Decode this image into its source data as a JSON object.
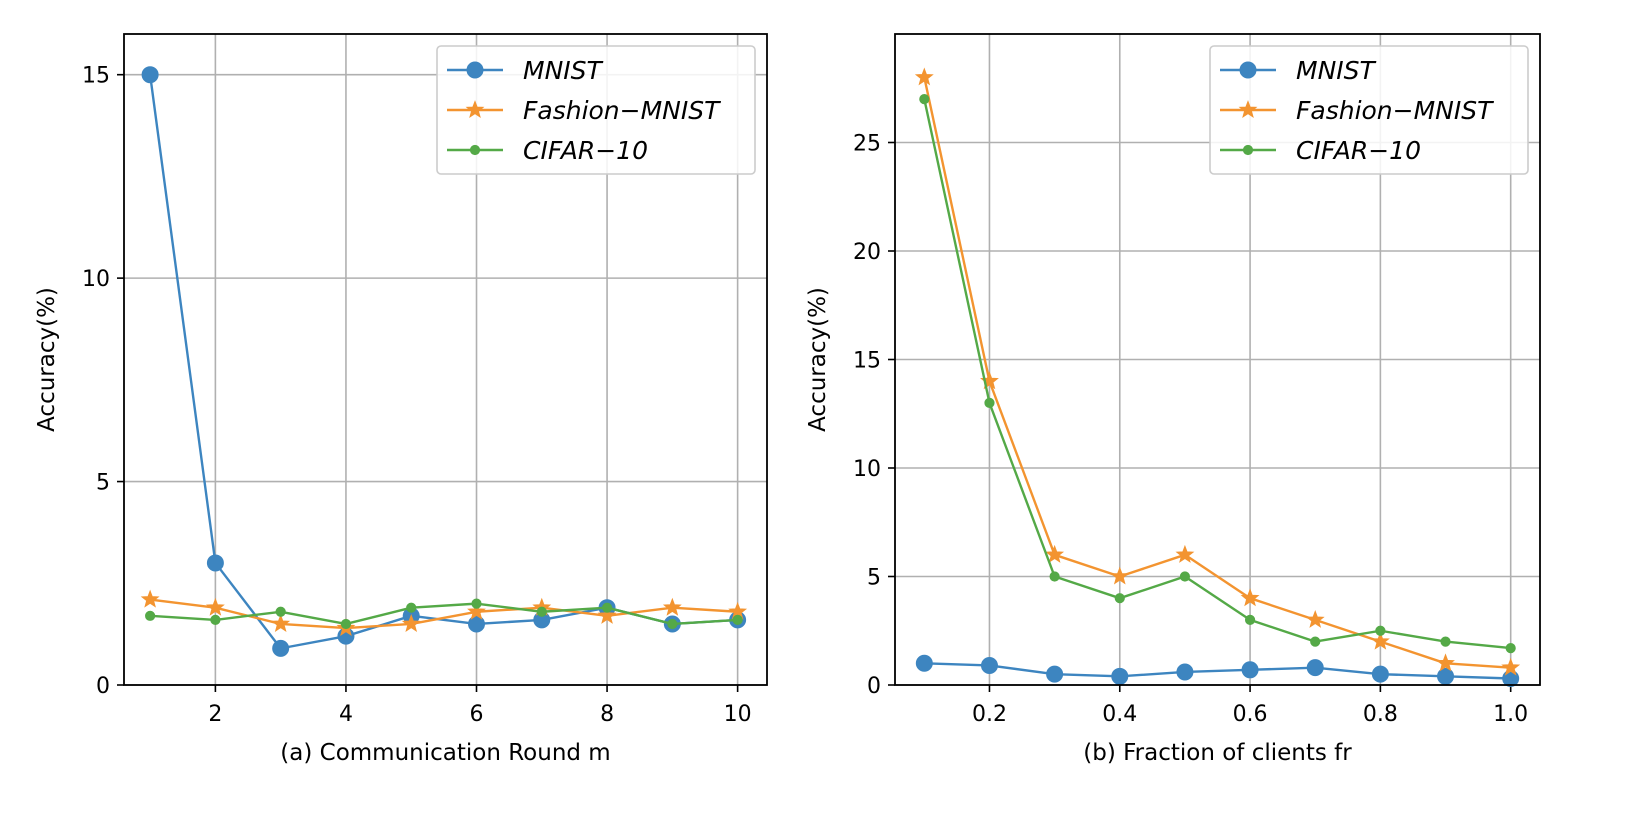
{
  "chart_data": [
    {
      "type": "line",
      "xlabel": "(a) Communication Round m",
      "ylabel": "Accuracy(%)",
      "xlim": [
        0.6,
        10.45
      ],
      "ylim": [
        0,
        16
      ],
      "xticks": [
        2,
        4,
        6,
        8,
        10
      ],
      "yticks": [
        0,
        5,
        10,
        15
      ],
      "grid": true,
      "legend_position": "top-right",
      "x": [
        1,
        2,
        3,
        4,
        5,
        6,
        7,
        8,
        9,
        10
      ],
      "series": [
        {
          "name": "MNIST",
          "marker": "circle",
          "color": "#3d85c0",
          "values": [
            15.0,
            3.0,
            0.9,
            1.2,
            1.7,
            1.5,
            1.6,
            1.9,
            1.5,
            1.6
          ]
        },
        {
          "name": "Fashion−MNIST",
          "marker": "star",
          "color": "#f39430",
          "values": [
            2.1,
            1.9,
            1.5,
            1.4,
            1.5,
            1.8,
            1.9,
            1.7,
            1.9,
            1.8
          ]
        },
        {
          "name": "CIFAR−10",
          "marker": "dot",
          "color": "#54a947",
          "values": [
            1.7,
            1.6,
            1.8,
            1.5,
            1.9,
            2.0,
            1.8,
            1.9,
            1.5,
            1.6
          ]
        }
      ]
    },
    {
      "type": "line",
      "xlabel": "(b) Fraction of clients fr",
      "ylabel": "Accuracy(%)",
      "xlim": [
        0.055,
        1.045
      ],
      "ylim": [
        0,
        30
      ],
      "xticks": [
        0.2,
        0.4,
        0.6,
        0.8,
        1.0
      ],
      "xtick_labels": [
        "0.2",
        "0.4",
        "0.6",
        "0.8",
        "1.0"
      ],
      "yticks": [
        0,
        5,
        10,
        15,
        20,
        25
      ],
      "grid": true,
      "legend_position": "top-right",
      "x": [
        0.1,
        0.2,
        0.3,
        0.4,
        0.5,
        0.6,
        0.7,
        0.8,
        0.9,
        1.0
      ],
      "series": [
        {
          "name": "MNIST",
          "marker": "circle",
          "color": "#3d85c0",
          "values": [
            1.0,
            0.9,
            0.5,
            0.4,
            0.6,
            0.7,
            0.8,
            0.5,
            0.4,
            0.3
          ]
        },
        {
          "name": "Fashion−MNIST",
          "marker": "star",
          "color": "#f39430",
          "values": [
            28.0,
            14.0,
            6.0,
            5.0,
            6.0,
            4.0,
            3.0,
            2.0,
            1.0,
            0.8
          ]
        },
        {
          "name": "CIFAR−10",
          "marker": "dot",
          "color": "#54a947",
          "values": [
            27.0,
            13.0,
            5.0,
            4.0,
            5.0,
            3.0,
            2.0,
            2.5,
            2.0,
            1.7
          ]
        }
      ]
    }
  ]
}
